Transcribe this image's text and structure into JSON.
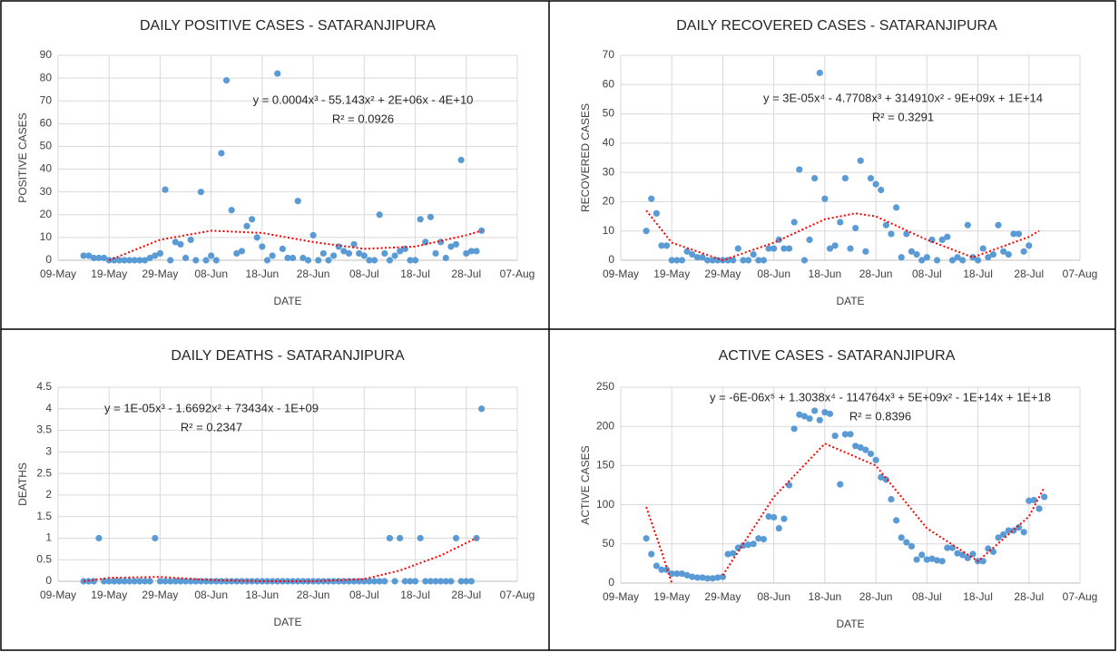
{
  "chart_data": [
    {
      "type": "scatter",
      "title": "DAILY POSITIVE CASES - SATARANJIPURA",
      "xlabel": "DATE",
      "ylabel": "POSITIVE CASES",
      "x": [
        "14-May",
        "15-May",
        "16-May",
        "17-May",
        "18-May",
        "19-May",
        "20-May",
        "21-May",
        "22-May",
        "23-May",
        "24-May",
        "25-May",
        "26-May",
        "27-May",
        "28-May",
        "29-May",
        "30-May",
        "31-May",
        "01-Jun",
        "02-Jun",
        "03-Jun",
        "04-Jun",
        "05-Jun",
        "06-Jun",
        "07-Jun",
        "08-Jun",
        "09-Jun",
        "10-Jun",
        "11-Jun",
        "12-Jun",
        "13-Jun",
        "14-Jun",
        "15-Jun",
        "16-Jun",
        "17-Jun",
        "18-Jun",
        "19-Jun",
        "20-Jun",
        "21-Jun",
        "22-Jun",
        "23-Jun",
        "24-Jun",
        "25-Jun",
        "26-Jun",
        "27-Jun",
        "28-Jun",
        "29-Jun",
        "30-Jun",
        "01-Jul",
        "02-Jul",
        "03-Jul",
        "04-Jul",
        "05-Jul",
        "06-Jul",
        "07-Jul",
        "08-Jul",
        "09-Jul",
        "10-Jul",
        "11-Jul",
        "12-Jul",
        "13-Jul",
        "14-Jul",
        "15-Jul",
        "16-Jul",
        "17-Jul",
        "18-Jul",
        "19-Jul",
        "20-Jul",
        "21-Jul",
        "22-Jul",
        "23-Jul",
        "24-Jul",
        "25-Jul",
        "26-Jul",
        "27-Jul",
        "28-Jul",
        "29-Jul",
        "30-Jul",
        "31-Jul"
      ],
      "values": [
        2,
        2,
        1,
        1,
        1,
        0,
        0,
        0,
        0,
        0,
        0,
        0,
        0,
        1,
        2,
        3,
        31,
        0,
        8,
        7,
        1,
        9,
        0,
        30,
        0,
        2,
        0,
        47,
        79,
        22,
        3,
        4,
        15,
        18,
        10,
        6,
        0,
        2,
        82,
        5,
        1,
        1,
        26,
        1,
        0,
        11,
        0,
        3,
        0,
        2,
        6,
        4,
        3,
        7,
        3,
        2,
        0,
        0,
        20,
        3,
        0,
        2,
        4,
        5,
        0,
        0,
        18,
        8,
        19,
        3,
        8,
        1,
        6,
        7,
        44,
        3,
        4,
        4,
        13
      ],
      "color": "#5b9bd5",
      "trendline": {
        "x": [
          "19-May",
          "29-May",
          "08-Jun",
          "18-Jun",
          "28-Jun",
          "08-Jul",
          "18-Jul",
          "28-Jul",
          "31-Jul"
        ],
        "values": [
          0,
          9,
          13,
          12,
          8,
          5,
          6,
          11,
          13
        ],
        "color": "#ff0000"
      },
      "equation": "y = 0.0004x³ - 55.143x² + 2E+06x - 4E+10",
      "r_squared": "R² = 0.0926",
      "xlim": [
        "09-May",
        "07-Aug"
      ],
      "xticks": [
        "09-May",
        "19-May",
        "29-May",
        "08-Jun",
        "18-Jun",
        "28-Jun",
        "08-Jul",
        "18-Jul",
        "28-Jul",
        "07-Aug"
      ],
      "ylim": [
        0,
        90
      ],
      "yticks": [
        0,
        10,
        20,
        30,
        40,
        50,
        60,
        70,
        80,
        90
      ],
      "grid": true
    },
    {
      "type": "scatter",
      "title": "DAILY RECOVERED CASES - SATARANJIPURA",
      "xlabel": "DATE",
      "ylabel": "RECOVERED CASES",
      "x": [
        "14-May",
        "15-May",
        "16-May",
        "17-May",
        "18-May",
        "19-May",
        "20-May",
        "21-May",
        "22-May",
        "23-May",
        "24-May",
        "25-May",
        "26-May",
        "27-May",
        "28-May",
        "29-May",
        "30-May",
        "31-May",
        "01-Jun",
        "02-Jun",
        "03-Jun",
        "04-Jun",
        "05-Jun",
        "06-Jun",
        "07-Jun",
        "08-Jun",
        "09-Jun",
        "10-Jun",
        "11-Jun",
        "12-Jun",
        "13-Jun",
        "14-Jun",
        "15-Jun",
        "16-Jun",
        "17-Jun",
        "18-Jun",
        "19-Jun",
        "20-Jun",
        "21-Jun",
        "22-Jun",
        "23-Jun",
        "24-Jun",
        "25-Jun",
        "26-Jun",
        "27-Jun",
        "28-Jun",
        "29-Jun",
        "30-Jun",
        "01-Jul",
        "02-Jul",
        "03-Jul",
        "04-Jul",
        "05-Jul",
        "06-Jul",
        "07-Jul",
        "08-Jul",
        "09-Jul",
        "10-Jul",
        "11-Jul",
        "12-Jul",
        "13-Jul",
        "14-Jul",
        "15-Jul",
        "16-Jul",
        "17-Jul",
        "18-Jul",
        "19-Jul",
        "20-Jul",
        "21-Jul",
        "22-Jul",
        "23-Jul",
        "24-Jul",
        "25-Jul",
        "26-Jul",
        "27-Jul",
        "28-Jul",
        "29-Jul",
        "30-Jul",
        "31-Jul"
      ],
      "values": [
        10,
        21,
        16,
        5,
        5,
        0,
        0,
        0,
        3,
        2,
        1,
        1,
        0,
        0,
        0,
        0,
        0,
        0,
        4,
        0,
        0,
        2,
        0,
        0,
        4,
        4,
        7,
        4,
        4,
        13,
        31,
        0,
        7,
        28,
        64,
        21,
        4,
        5,
        13,
        28,
        4,
        11,
        34,
        3,
        28,
        26,
        24,
        12,
        9,
        18,
        1,
        9,
        3,
        2,
        0,
        1,
        7,
        0,
        7,
        8,
        0,
        1,
        0,
        12,
        1,
        0,
        4,
        1,
        2,
        12,
        3,
        2,
        9,
        9,
        3,
        5,
        null,
        null,
        null
      ],
      "color": "#5b9bd5",
      "trendline": {
        "x": [
          "14-May",
          "19-May",
          "29-May",
          "08-Jun",
          "18-Jun",
          "24-Jun",
          "28-Jun",
          "08-Jul",
          "17-Jul",
          "28-Jul",
          "30-Jul"
        ],
        "values": [
          17,
          6,
          0,
          6,
          14,
          16,
          15,
          7,
          1,
          8,
          10
        ],
        "color": "#ff0000"
      },
      "equation": "y = 3E-05x⁴ - 4.7708x³ + 314910x² - 9E+09x + 1E+14",
      "r_squared": "R² = 0.3291",
      "xlim": [
        "09-May",
        "07-Aug"
      ],
      "xticks": [
        "09-May",
        "19-May",
        "29-May",
        "08-Jun",
        "18-Jun",
        "28-Jun",
        "08-Jul",
        "18-Jul",
        "28-Jul",
        "07-Aug"
      ],
      "ylim": [
        0,
        70
      ],
      "yticks": [
        0,
        10,
        20,
        30,
        40,
        50,
        60,
        70
      ],
      "grid": true
    },
    {
      "type": "scatter",
      "title": "DAILY DEATHS - SATARANJIPURA",
      "xlabel": "DATE",
      "ylabel": "DEATHS",
      "x": [
        "14-May",
        "15-May",
        "16-May",
        "17-May",
        "18-May",
        "19-May",
        "20-May",
        "21-May",
        "22-May",
        "23-May",
        "24-May",
        "25-May",
        "26-May",
        "27-May",
        "28-May",
        "29-May",
        "30-May",
        "31-May",
        "01-Jun",
        "02-Jun",
        "03-Jun",
        "04-Jun",
        "05-Jun",
        "06-Jun",
        "07-Jun",
        "08-Jun",
        "09-Jun",
        "10-Jun",
        "11-Jun",
        "12-Jun",
        "13-Jun",
        "14-Jun",
        "15-Jun",
        "16-Jun",
        "17-Jun",
        "18-Jun",
        "19-Jun",
        "20-Jun",
        "21-Jun",
        "22-Jun",
        "23-Jun",
        "24-Jun",
        "25-Jun",
        "26-Jun",
        "27-Jun",
        "28-Jun",
        "29-Jun",
        "30-Jun",
        "01-Jul",
        "02-Jul",
        "03-Jul",
        "04-Jul",
        "05-Jul",
        "06-Jul",
        "07-Jul",
        "08-Jul",
        "09-Jul",
        "10-Jul",
        "11-Jul",
        "12-Jul",
        "13-Jul",
        "14-Jul",
        "15-Jul",
        "16-Jul",
        "17-Jul",
        "18-Jul",
        "19-Jul",
        "20-Jul",
        "21-Jul",
        "22-Jul",
        "23-Jul",
        "24-Jul",
        "25-Jul",
        "26-Jul",
        "27-Jul",
        "28-Jul",
        "29-Jul",
        "30-Jul",
        "31-Jul"
      ],
      "values": [
        0,
        0,
        0,
        1,
        0,
        0,
        0,
        0,
        0,
        0,
        0,
        0,
        0,
        0,
        1,
        0,
        0,
        0,
        0,
        0,
        0,
        0,
        0,
        0,
        0,
        0,
        0,
        0,
        0,
        0,
        0,
        0,
        0,
        0,
        0,
        0,
        0,
        0,
        0,
        0,
        0,
        0,
        0,
        0,
        0,
        0,
        0,
        0,
        0,
        0,
        0,
        0,
        0,
        0,
        0,
        0,
        0,
        0,
        0,
        0,
        1,
        0,
        1,
        0,
        0,
        0,
        1,
        0,
        0,
        0,
        0,
        0,
        0,
        1,
        0,
        0,
        0,
        1,
        4
      ],
      "color": "#5b9bd5",
      "trendline": {
        "x": [
          "14-May",
          "19-May",
          "29-May",
          "08-Jun",
          "18-Jun",
          "28-Jun",
          "08-Jul",
          "15-Jul",
          "23-Jul",
          "30-Jul"
        ],
        "values": [
          0,
          0.08,
          0.1,
          0.03,
          0,
          0,
          0.05,
          0.25,
          0.6,
          1
        ],
        "color": "#ff0000"
      },
      "equation": "y = 1E-05x³ - 1.6692x² + 73434x - 1E+09",
      "r_squared": "R² = 0.2347",
      "xlim": [
        "09-May",
        "07-Aug"
      ],
      "xticks": [
        "09-May",
        "19-May",
        "29-May",
        "08-Jun",
        "18-Jun",
        "28-Jun",
        "08-Jul",
        "18-Jul",
        "28-Jul",
        "07-Aug"
      ],
      "ylim": [
        0,
        4.5
      ],
      "yticks": [
        0,
        0.5,
        1,
        1.5,
        2,
        2.5,
        3,
        3.5,
        4,
        4.5
      ],
      "grid": true
    },
    {
      "type": "scatter",
      "title": "ACTIVE CASES - SATARANJIPURA",
      "xlabel": "DATE",
      "ylabel": "ACTIVE CASES",
      "x": [
        "14-May",
        "15-May",
        "16-May",
        "17-May",
        "18-May",
        "19-May",
        "20-May",
        "21-May",
        "22-May",
        "23-May",
        "24-May",
        "25-May",
        "26-May",
        "27-May",
        "28-May",
        "29-May",
        "30-May",
        "31-May",
        "01-Jun",
        "02-Jun",
        "03-Jun",
        "04-Jun",
        "05-Jun",
        "06-Jun",
        "07-Jun",
        "08-Jun",
        "09-Jun",
        "10-Jun",
        "11-Jun",
        "12-Jun",
        "13-Jun",
        "14-Jun",
        "15-Jun",
        "16-Jun",
        "17-Jun",
        "18-Jun",
        "19-Jun",
        "20-Jun",
        "21-Jun",
        "22-Jun",
        "23-Jun",
        "24-Jun",
        "25-Jun",
        "26-Jun",
        "27-Jun",
        "28-Jun",
        "29-Jun",
        "30-Jun",
        "01-Jul",
        "02-Jul",
        "03-Jul",
        "04-Jul",
        "05-Jul",
        "06-Jul",
        "07-Jul",
        "08-Jul",
        "09-Jul",
        "10-Jul",
        "11-Jul",
        "12-Jul",
        "13-Jul",
        "14-Jul",
        "15-Jul",
        "16-Jul",
        "17-Jul",
        "18-Jul",
        "19-Jul",
        "20-Jul",
        "21-Jul",
        "22-Jul",
        "23-Jul",
        "24-Jul",
        "25-Jul",
        "26-Jul",
        "27-Jul",
        "28-Jul",
        "29-Jul",
        "30-Jul",
        "31-Jul"
      ],
      "values": [
        57,
        37,
        22,
        17,
        17,
        12,
        12,
        12,
        10,
        8,
        7,
        7,
        6,
        6,
        7,
        8,
        37,
        38,
        45,
        48,
        49,
        50,
        57,
        56,
        85,
        84,
        70,
        82,
        125,
        197,
        215,
        213,
        210,
        220,
        208,
        218,
        216,
        188,
        126,
        190,
        190,
        175,
        173,
        170,
        165,
        157,
        135,
        132,
        107,
        80,
        58,
        52,
        47,
        30,
        36,
        30,
        31,
        29,
        28,
        45,
        45,
        38,
        36,
        32,
        37,
        28,
        28,
        44,
        40,
        58,
        62,
        67,
        67,
        71,
        65,
        105,
        106,
        95,
        110
      ],
      "color": "#5b9bd5",
      "trendline": {
        "x": [
          "14-May",
          "17-May",
          "19-May",
          "24-May",
          "29-May",
          "08-Jun",
          "18-Jun",
          "28-Jun",
          "08-Jul",
          "18-Jul",
          "28-Jul",
          "31-Jul"
        ],
        "values": [
          97,
          40,
          0,
          null,
          10,
          110,
          178,
          150,
          70,
          28,
          85,
          122
        ],
        "color": "#ff0000"
      },
      "equation": "y = -6E-06x⁵ + 1.3038x⁴ - 114764x³ + 5E+09x² - 1E+14x + 1E+18",
      "r_squared": "R² = 0.8396",
      "xlim": [
        "09-May",
        "07-Aug"
      ],
      "xticks": [
        "09-May",
        "19-May",
        "29-May",
        "08-Jun",
        "18-Jun",
        "28-Jun",
        "08-Jul",
        "18-Jul",
        "28-Jul",
        "07-Aug"
      ],
      "ylim": [
        0,
        250
      ],
      "yticks": [
        0,
        50,
        100,
        150,
        200,
        250
      ],
      "grid": true
    }
  ]
}
